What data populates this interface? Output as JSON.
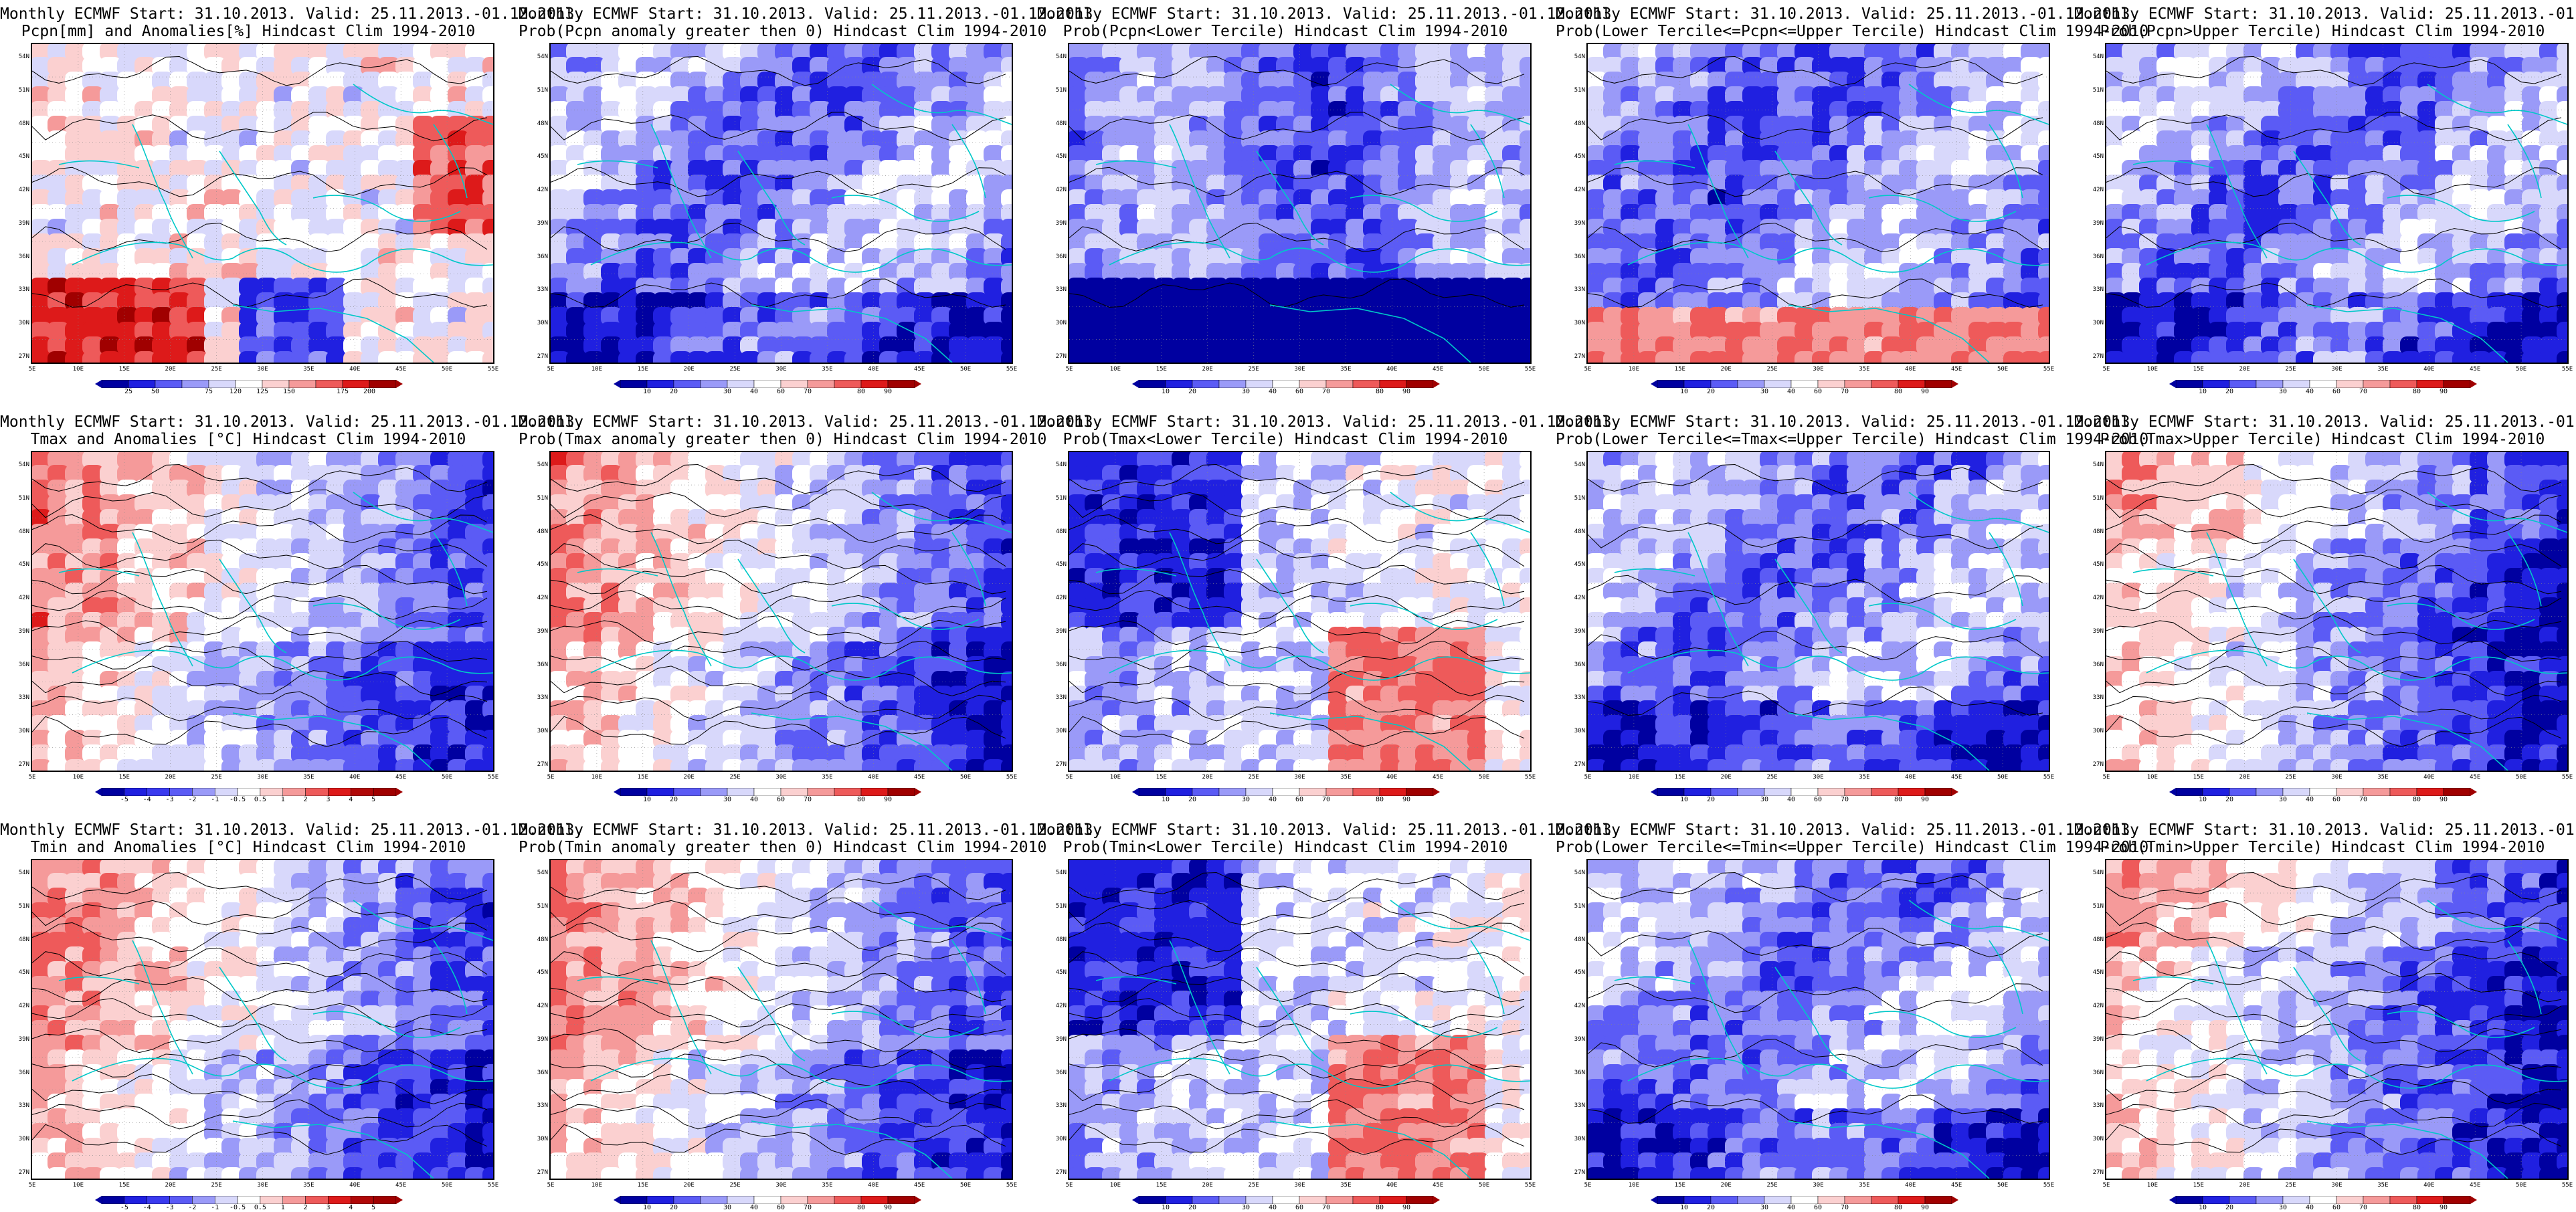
{
  "title_line1": "Monthly ECMWF Start: 31.10.2013. Valid: 25.11.2013.-01.12.2013.",
  "lat_labels": [
    "54N",
    "51N",
    "48N",
    "45N",
    "42N",
    "39N",
    "36N",
    "33N",
    "30N",
    "27N"
  ],
  "lon_labels": [
    "5E",
    "10E",
    "15E",
    "20E",
    "25E",
    "30E",
    "35E",
    "40E",
    "45E",
    "50E",
    "55E"
  ],
  "prob_colorbar": {
    "labels": [
      "10",
      "20",
      "30",
      "40",
      "60",
      "70",
      "80",
      "90"
    ],
    "colors": [
      "#0000a0",
      "#2020e0",
      "#5b5bf5",
      "#9a9af8",
      "#d8d8fb",
      "#ffffff",
      "#fbd0d0",
      "#f59a9a",
      "#ee5a5a",
      "#dd1a1a",
      "#a00000"
    ]
  },
  "pcpn_colorbar": {
    "labels": [
      "25",
      "50",
      "75",
      "120",
      "125",
      "150",
      "175",
      "200"
    ],
    "colors": [
      "#0000a0",
      "#2020e0",
      "#5b5bf5",
      "#9a9af8",
      "#d8d8fb",
      "#ffffff",
      "#fbd0d0",
      "#f59a9a",
      "#ee5a5a",
      "#dd1a1a",
      "#a00000"
    ]
  },
  "temp_colorbar": {
    "labels": [
      "-5",
      "-4",
      "-3",
      "-2",
      "-1",
      "-0.5",
      "0.5",
      "1",
      "2",
      "3",
      "4",
      "5"
    ],
    "colors": [
      "#0000a0",
      "#2020e0",
      "#3a3aef",
      "#5b5bf5",
      "#9a9af8",
      "#d8d8fb",
      "#ffffff",
      "#fbd0d0",
      "#f59a9a",
      "#ee5a5a",
      "#dd1a1a",
      "#b00808",
      "#a00000"
    ]
  },
  "colors": {
    "coast": "#00c8c8",
    "contour": "#000000",
    "frame": "#000000"
  },
  "panels": [
    {
      "id": "pcpn-anom",
      "title2": "Pcpn[mm] and Anomalies[%] Hindcast Clim 1994-2010",
      "bar": "pcpn_colorbar",
      "theme": "pcpn"
    },
    {
      "id": "pcpn-prob-pos",
      "title2": "Prob(Pcpn anomaly greater then 0) Hindcast Clim 1994-2010",
      "bar": "prob_colorbar",
      "theme": "blue"
    },
    {
      "id": "pcpn-prob-low",
      "title2": "Prob(Pcpn<Lower Tercile) Hindcast Clim 1994-2010",
      "bar": "prob_colorbar",
      "theme": "deepblue"
    },
    {
      "id": "pcpn-prob-mid",
      "title2": "Prob(Lower Tercile<=Pcpn<=Upper Tercile) Hindcast Clim 1994-2010",
      "bar": "prob_colorbar",
      "theme": "bluered-south"
    },
    {
      "id": "pcpn-prob-up",
      "title2": "Prob(Pcpn>Upper Tercile) Hindcast Clim 1994-2010",
      "bar": "prob_colorbar",
      "theme": "blue"
    },
    {
      "id": "tmax-anom",
      "title2": "Tmax and Anomalies [°C] Hindcast Clim 1994-2010",
      "bar": "temp_colorbar",
      "theme": "red-west-blue-east"
    },
    {
      "id": "tmax-prob-pos",
      "title2": "Prob(Tmax anomaly greater then 0) Hindcast Clim 1994-2010",
      "bar": "prob_colorbar",
      "theme": "red-west-blue-east"
    },
    {
      "id": "tmax-prob-low",
      "title2": "Prob(Tmax<Lower Tercile) Hindcast Clim 1994-2010",
      "bar": "prob_colorbar",
      "theme": "blue-west-red-se"
    },
    {
      "id": "tmax-prob-mid",
      "title2": "Prob(Lower Tercile<=Tmax<=Upper Tercile) Hindcast Clim 1994-2010",
      "bar": "prob_colorbar",
      "theme": "blue"
    },
    {
      "id": "tmax-prob-up",
      "title2": "Prob(Tmax>Upper Tercile) Hindcast Clim 1994-2010",
      "bar": "prob_colorbar",
      "theme": "blue-east"
    },
    {
      "id": "tmin-anom",
      "title2": "Tmin and Anomalies [°C] Hindcast Clim 1994-2010",
      "bar": "temp_colorbar",
      "theme": "red-west-blue-east"
    },
    {
      "id": "tmin-prob-pos",
      "title2": "Prob(Tmin anomaly greater then 0) Hindcast Clim 1994-2010",
      "bar": "prob_colorbar",
      "theme": "red-west-blue-east"
    },
    {
      "id": "tmin-prob-low",
      "title2": "Prob(Tmin<Lower Tercile) Hindcast Clim 1994-2010",
      "bar": "prob_colorbar",
      "theme": "blue-west-red-se"
    },
    {
      "id": "tmin-prob-mid",
      "title2": "Prob(Lower Tercile<=Tmin<=Upper Tercile) Hindcast Clim 1994-2010",
      "bar": "prob_colorbar",
      "theme": "blue"
    },
    {
      "id": "tmin-prob-up",
      "title2": "Prob(Tmin>Upper Tercile) Hindcast Clim 1994-2010",
      "bar": "prob_colorbar",
      "theme": "blue-east"
    }
  ]
}
